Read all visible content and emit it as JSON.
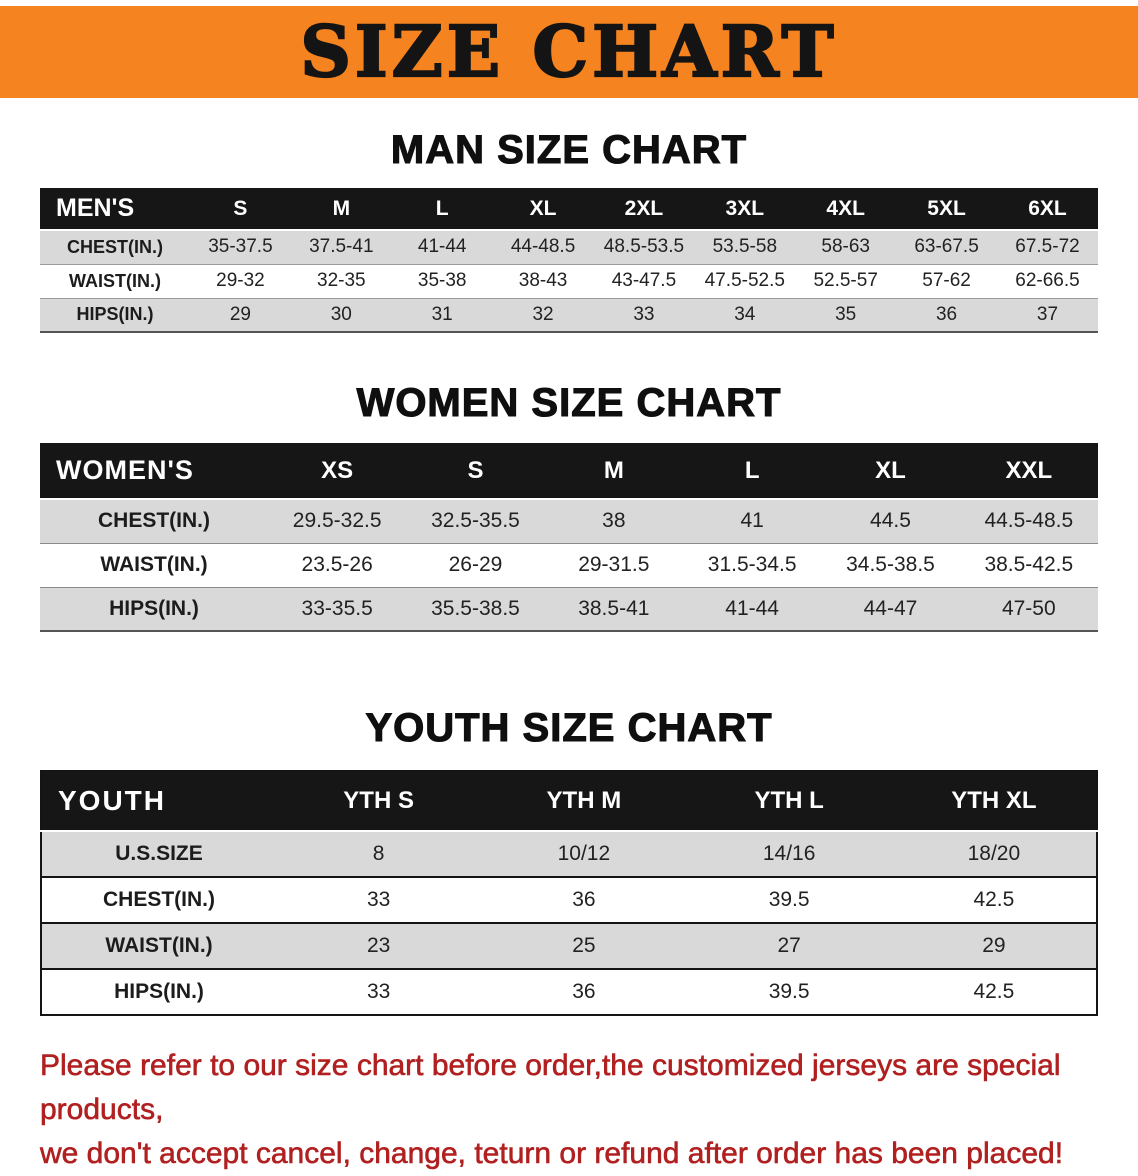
{
  "banner": {
    "title": "SIZE CHART",
    "bg_color": "#f5831f"
  },
  "sections": [
    {
      "heading": "MAN SIZE CHART",
      "table": {
        "header": [
          "MEN'S",
          "S",
          "M",
          "L",
          "XL",
          "2XL",
          "3XL",
          "4XL",
          "5XL",
          "6XL"
        ],
        "rows": [
          [
            "CHEST(IN.)",
            "35-37.5",
            "37.5-41",
            "41-44",
            "44-48.5",
            "48.5-53.5",
            "53.5-58",
            "58-63",
            "63-67.5",
            "67.5-72"
          ],
          [
            "WAIST(IN.)",
            "29-32",
            "32-35",
            "35-38",
            "38-43",
            "43-47.5",
            "47.5-52.5",
            "52.5-57",
            "57-62",
            "62-66.5"
          ],
          [
            "HIPS(IN.)",
            "29",
            "30",
            "31",
            "32",
            "33",
            "34",
            "35",
            "36",
            "37"
          ]
        ]
      }
    },
    {
      "heading": "WOMEN SIZE CHART",
      "table": {
        "header": [
          "WOMEN'S",
          "XS",
          "S",
          "M",
          "L",
          "XL",
          "XXL"
        ],
        "rows": [
          [
            "CHEST(IN.)",
            "29.5-32.5",
            "32.5-35.5",
            "38",
            "41",
            "44.5",
            "44.5-48.5"
          ],
          [
            "WAIST(IN.)",
            "23.5-26",
            "26-29",
            "29-31.5",
            "31.5-34.5",
            "34.5-38.5",
            "38.5-42.5"
          ],
          [
            "HIPS(IN.)",
            "33-35.5",
            "35.5-38.5",
            "38.5-41",
            "41-44",
            "44-47",
            "47-50"
          ]
        ]
      }
    },
    {
      "heading": "YOUTH SIZE CHART",
      "table": {
        "header": [
          "YOUTH",
          "YTH S",
          "YTH M",
          "YTH L",
          "YTH XL"
        ],
        "rows": [
          [
            "U.S.SIZE",
            "8",
            "10/12",
            "14/16",
            "18/20"
          ],
          [
            "CHEST(IN.)",
            "33",
            "36",
            "39.5",
            "42.5"
          ],
          [
            "WAIST(IN.)",
            "23",
            "25",
            "27",
            "29"
          ],
          [
            "HIPS(IN.)",
            "33",
            "36",
            "39.5",
            "42.5"
          ]
        ]
      }
    }
  ],
  "footer_note": {
    "line1": "Please refer to our size chart before order,the customized jerseys are special products,",
    "line2": "we don't accept cancel, change, teturn or refund after order has been placed!",
    "color": "#b12020"
  }
}
